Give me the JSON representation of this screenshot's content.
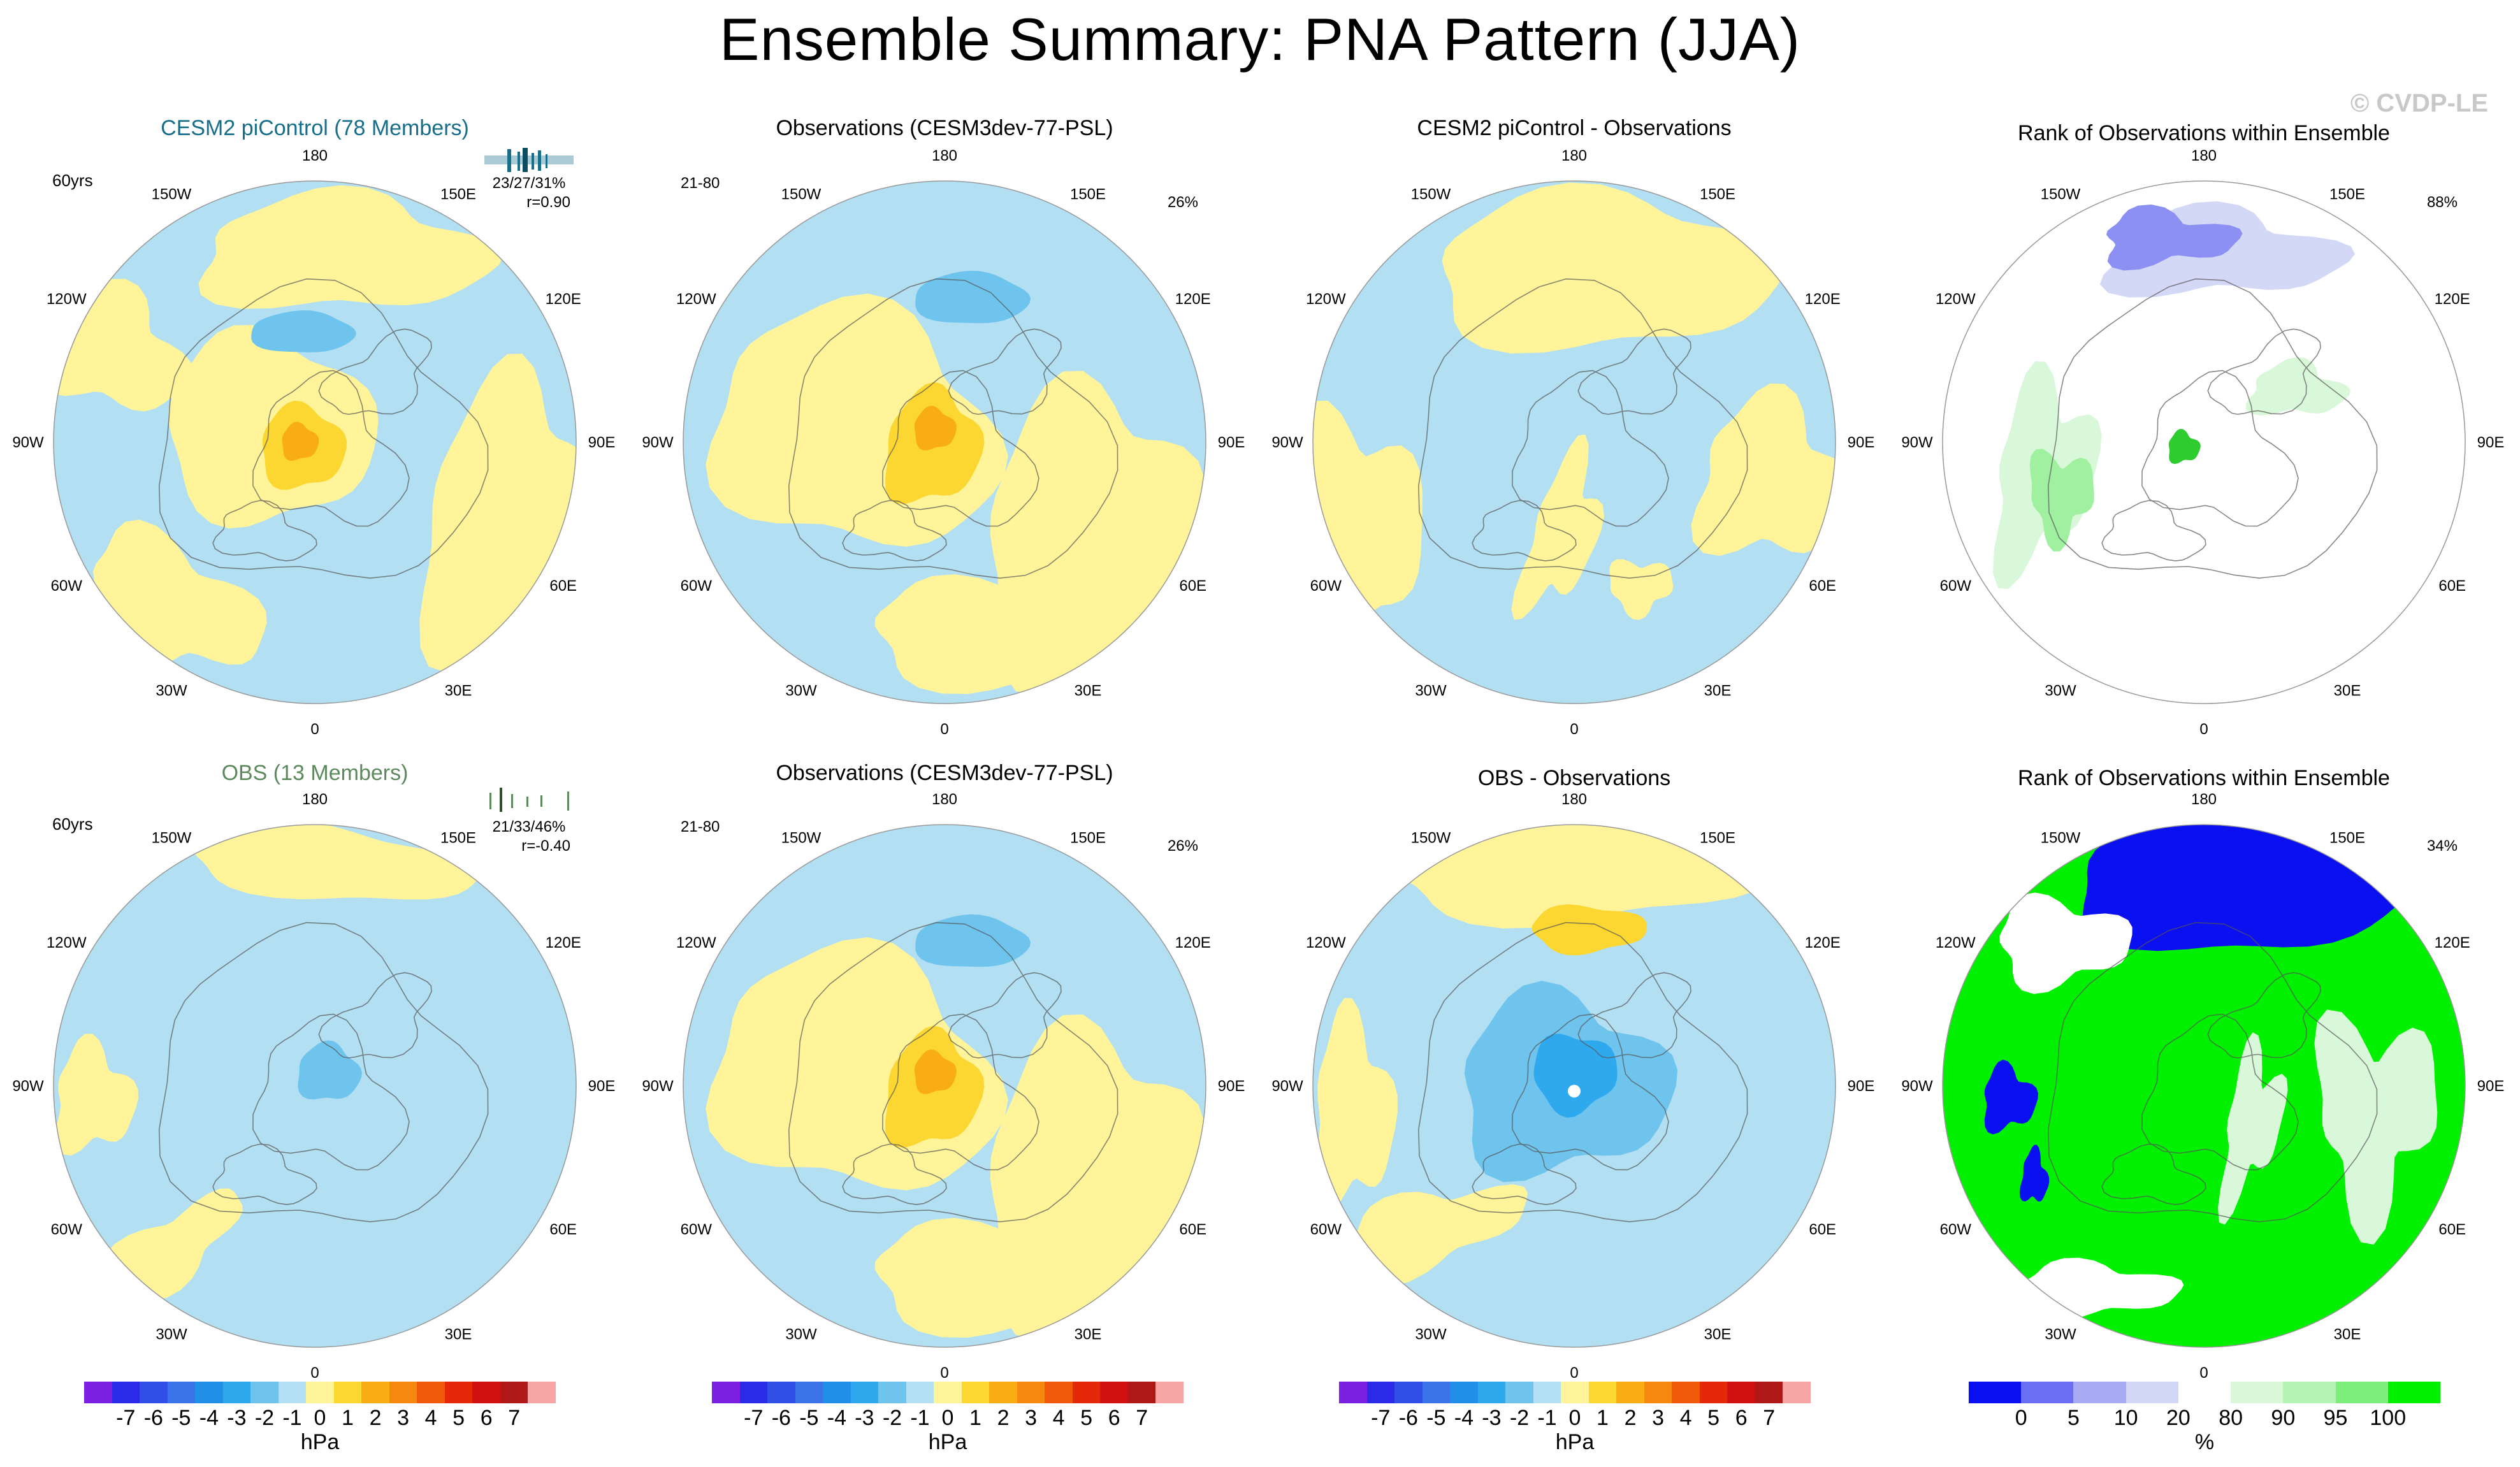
{
  "title": "Ensemble Summary: PNA Pattern (JJA)",
  "copyright": "© CVDP-LE",
  "map_labels": [
    "180",
    "150E",
    "120E",
    "90E",
    "60E",
    "30E",
    "0",
    "30W",
    "60W",
    "90W",
    "120W",
    "150W"
  ],
  "colors": {
    "pos1": "#fff49a",
    "pos2": "#fcd631",
    "pos3": "#f9ad14",
    "pos4": "#f7880f",
    "neg1": "#b2dff2",
    "neg2": "#6fc4ee",
    "neg3": "#2fa9ee",
    "neg4": "#1f8fe8",
    "rank_blue": "#0a10f0",
    "rank_lightblue": "#d3d8f6",
    "rank_green": "#00f000",
    "rank_lightgreen": "#d9f8d9",
    "coast": "#555555",
    "title_cesm": "#176e8a",
    "title_obs": "#5d8a5d"
  },
  "panels": [
    {
      "title": "CESM2 piControl (78 Members)",
      "left_text": "60yrs",
      "stats": "23/27/31%",
      "corr": "r=0.90",
      "pct": ""
    },
    {
      "title": "Observations (CESM3dev-77-PSL)",
      "left_text": "21-80",
      "stats": "",
      "corr": "",
      "pct": "26%"
    },
    {
      "title": "CESM2 piControl - Observations",
      "left_text": "",
      "stats": "",
      "corr": "",
      "pct": ""
    },
    {
      "title": "Rank of Observations within Ensemble",
      "left_text": "",
      "stats": "",
      "corr": "",
      "pct": "88%"
    },
    {
      "title": "OBS (13 Members)",
      "left_text": "60yrs",
      "stats": "21/33/46%",
      "corr": "r=-0.40",
      "pct": ""
    },
    {
      "title": "Observations (CESM3dev-77-PSL)",
      "left_text": "21-80",
      "stats": "",
      "corr": "",
      "pct": "26%"
    },
    {
      "title": "OBS - Observations",
      "left_text": "",
      "stats": "",
      "corr": "",
      "pct": ""
    },
    {
      "title": "Rank of Observations within Ensemble",
      "left_text": "",
      "stats": "",
      "corr": "",
      "pct": "34%"
    }
  ],
  "chart_data": {
    "type": "map",
    "projection": "north polar stereographic",
    "variable": "PNA pattern sea level pressure regression (JJA)",
    "colorbar_hpa": {
      "unit": "hPa",
      "ticks": [
        "-7",
        "-6",
        "-5",
        "-4",
        "-3",
        "-2",
        "-1",
        "0",
        "1",
        "2",
        "3",
        "4",
        "5",
        "6",
        "7"
      ],
      "colors": [
        "#7b1fe0",
        "#2a2ae8",
        "#2f4fe6",
        "#3a72e8",
        "#1f8fe8",
        "#2fa9ee",
        "#6fc4ee",
        "#b2dff2",
        "#fff49a",
        "#fcd631",
        "#f9ad14",
        "#f7880f",
        "#f05a0a",
        "#e52808",
        "#d11010",
        "#b01818",
        "#f6a4a4"
      ]
    },
    "colorbar_rank": {
      "unit": "%",
      "ticks": [
        "0",
        "5",
        "10",
        "20",
        "80",
        "90",
        "95",
        "100"
      ],
      "colors": [
        "#0a10f0",
        "#6a6ef2",
        "#a9acf2",
        "#d3d8f6",
        "#ffffff",
        "#d9f8d9",
        "#b4f4b4",
        "#7cee7c",
        "#00f000"
      ]
    }
  }
}
